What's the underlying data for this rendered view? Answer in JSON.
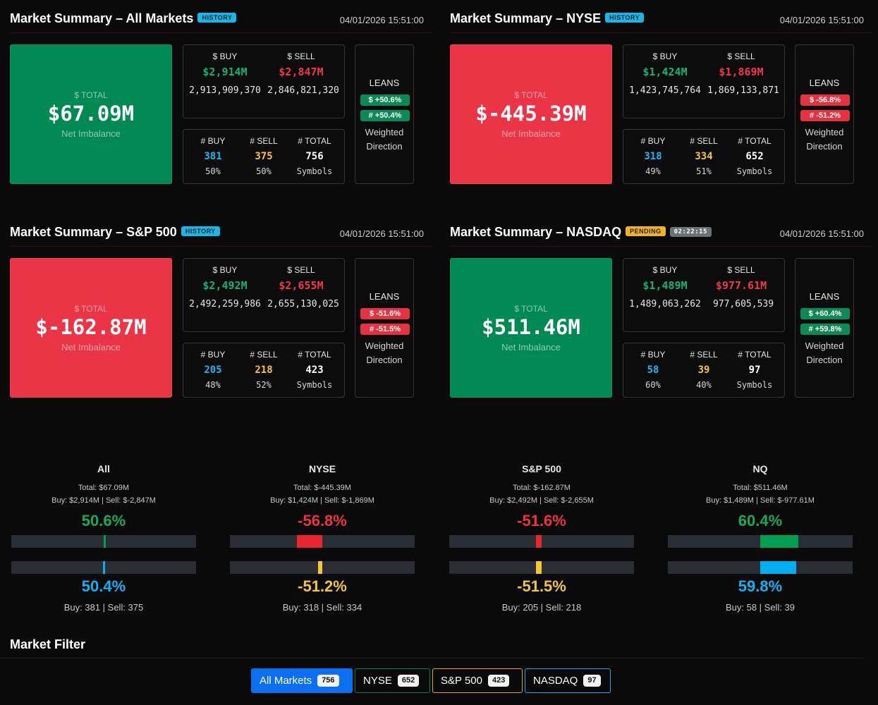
{
  "panels": [
    {
      "title": "Market Summary – All Markets",
      "tag": "HISTORY",
      "timer": "",
      "timestamp": "04/01/2026 15:51:00",
      "total_label": "$ TOTAL",
      "total_value": "$67.09M",
      "total_sub": "Net Imbalance",
      "buy_label": "$ BUY",
      "sell_label": "$ SELL",
      "buy_amount": "$2,914M",
      "sell_amount": "$2,847M",
      "buy_exact": "2,913,909,370",
      "sell_exact": "2,846,821,320",
      "count_buy_label": "# BUY",
      "count_sell_label": "# SELL",
      "count_total_label": "# TOTAL",
      "count_buy": "381",
      "count_sell": "375",
      "count_total": "756",
      "pct_buy": "50%",
      "pct_sell": "50%",
      "symbols": "Symbols",
      "leans_label": "LEANS",
      "lean_dollar": "$ +50.6%",
      "lean_count": "# +50.4%",
      "weighted": "Weighted Direction"
    },
    {
      "title": "Market Summary – NYSE",
      "tag": "HISTORY",
      "timer": "",
      "timestamp": "04/01/2026 15:51:00",
      "total_label": "$ TOTAL",
      "total_value": "$-445.39M",
      "total_sub": "Net Imbalance",
      "buy_label": "$ BUY",
      "sell_label": "$ SELL",
      "buy_amount": "$1,424M",
      "sell_amount": "$1,869M",
      "buy_exact": "1,423,745,764",
      "sell_exact": "1,869,133,871",
      "count_buy_label": "# BUY",
      "count_sell_label": "# SELL",
      "count_total_label": "# TOTAL",
      "count_buy": "318",
      "count_sell": "334",
      "count_total": "652",
      "pct_buy": "49%",
      "pct_sell": "51%",
      "symbols": "Symbols",
      "leans_label": "LEANS",
      "lean_dollar": "$ -56.8%",
      "lean_count": "# -51.2%",
      "weighted": "Weighted Direction"
    },
    {
      "title": "Market Summary – S&P 500",
      "tag": "HISTORY",
      "timer": "",
      "timestamp": "04/01/2026 15:51:00",
      "total_label": "$ TOTAL",
      "total_value": "$-162.87M",
      "total_sub": "Net Imbalance",
      "buy_label": "$ BUY",
      "sell_label": "$ SELL",
      "buy_amount": "$2,492M",
      "sell_amount": "$2,655M",
      "buy_exact": "2,492,259,986",
      "sell_exact": "2,655,130,025",
      "count_buy_label": "# BUY",
      "count_sell_label": "# SELL",
      "count_total_label": "# TOTAL",
      "count_buy": "205",
      "count_sell": "218",
      "count_total": "423",
      "pct_buy": "48%",
      "pct_sell": "52%",
      "symbols": "Symbols",
      "leans_label": "LEANS",
      "lean_dollar": "$ -51.6%",
      "lean_count": "# -51.5%",
      "weighted": "Weighted Direction"
    },
    {
      "title": "Market Summary – NASDAQ",
      "tag": "PENDING",
      "timer": "02:22:15",
      "timestamp": "04/01/2026 15:51:00",
      "total_label": "$ TOTAL",
      "total_value": "$511.46M",
      "total_sub": "Net Imbalance",
      "buy_label": "$ BUY",
      "sell_label": "$ SELL",
      "buy_amount": "$1,489M",
      "sell_amount": "$977.61M",
      "buy_exact": "1,489,063,262",
      "sell_exact": "977,605,539",
      "count_buy_label": "# BUY",
      "count_sell_label": "# SELL",
      "count_total_label": "# TOTAL",
      "count_buy": "58",
      "count_sell": "39",
      "count_total": "97",
      "pct_buy": "60%",
      "pct_sell": "40%",
      "symbols": "Symbols",
      "leans_label": "LEANS",
      "lean_dollar": "$ +60.4%",
      "lean_count": "# +59.8%",
      "weighted": "Weighted Direction"
    }
  ],
  "gauges": [
    {
      "name": "All",
      "total": "Total: $67.09M",
      "buy_sell": "Buy: $2,914M | Sell: $-2,847M",
      "dollar_pct": "50.6%",
      "dollar_value": 50.6,
      "count_pct": "50.4%",
      "count_value": 50.4,
      "counts": "Buy: 381 | Sell: 375"
    },
    {
      "name": "NYSE",
      "total": "Total: $-445.39M",
      "buy_sell": "Buy: $1,424M | Sell: $-1,869M",
      "dollar_pct": "-56.8%",
      "dollar_value": -56.8,
      "count_pct": "-51.2%",
      "count_value": -51.2,
      "counts": "Buy: 318 | Sell: 334"
    },
    {
      "name": "S&P 500",
      "total": "Total: $-162.87M",
      "buy_sell": "Buy: $2,492M | Sell: $-2,655M",
      "dollar_pct": "-51.6%",
      "dollar_value": -51.6,
      "count_pct": "-51.5%",
      "count_value": -51.5,
      "counts": "Buy: 205 | Sell: 218"
    },
    {
      "name": "NQ",
      "total": "Total: $511.46M",
      "buy_sell": "Buy: $1,489M | Sell: $-977.61M",
      "dollar_pct": "60.4%",
      "dollar_value": 60.4,
      "count_pct": "59.8%",
      "count_value": 59.8,
      "counts": "Buy: 58 | Sell: 39"
    }
  ],
  "filter": {
    "title": "Market Filter",
    "buttons": [
      {
        "label": "All Markets",
        "count": "756"
      },
      {
        "label": "NYSE",
        "count": "652"
      },
      {
        "label": "S&P 500",
        "count": "423"
      },
      {
        "label": "NASDAQ",
        "count": "97"
      }
    ]
  },
  "colors": {
    "positive": "#16b07a",
    "negative": "#f0384a",
    "buy_count": "#1db7f0",
    "sell_count": "#f7c531",
    "green_box": "#008a52",
    "red_box": "#ec3447",
    "active_filter": "#0a6ff0"
  }
}
